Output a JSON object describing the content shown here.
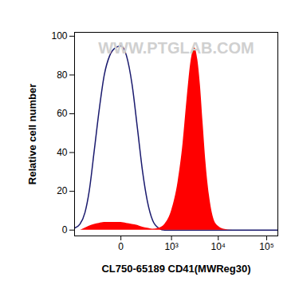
{
  "chart_data": {
    "type": "histogram",
    "x_label": "CL750-65189 CD41(MWReg30)",
    "y_label": "Relative cell number",
    "annotations": [
      "WWW.PTGLAB.COM"
    ],
    "log": "x",
    "x": [
      -800,
      -600,
      -450,
      -350,
      -250,
      -180,
      -120,
      -70,
      -30,
      0,
      30,
      70,
      120,
      180,
      250,
      350,
      500,
      700,
      1000,
      1400,
      1800,
      2200,
      2700,
      3200,
      3700,
      4200,
      4800,
      5500,
      6500,
      8000,
      10000,
      13000,
      20000,
      50000,
      170000
    ],
    "series": [
      {
        "type": "line",
        "color": "#1a1a6e",
        "values": [
          1,
          3,
          9,
          20,
          42,
          62,
          80,
          90,
          94,
          95,
          90,
          75,
          52,
          30,
          15,
          5,
          1,
          0,
          0,
          0,
          0,
          0,
          0,
          0,
          0,
          0,
          0,
          0,
          0,
          0,
          0,
          0,
          0,
          0,
          0
        ]
      },
      {
        "type": "area",
        "color": "#ff0000",
        "values": [
          0,
          0,
          1,
          2,
          3,
          3.5,
          4,
          4,
          4,
          4,
          3.5,
          3,
          2.5,
          1.5,
          1,
          0.5,
          1,
          3,
          10,
          25,
          45,
          68,
          88,
          94,
          88,
          75,
          55,
          35,
          18,
          6,
          2,
          0.5,
          0,
          0,
          0
        ]
      }
    ],
    "xlim": [
      -800,
      170000
    ],
    "xticks": [
      0,
      {
        "value": 1000,
        "label": "10³"
      },
      {
        "value": 10000,
        "label": "10⁴"
      },
      {
        "value": 100000,
        "label": "10⁵"
      }
    ],
    "ylim": [
      -3,
      102
    ],
    "yticks": [
      0,
      20,
      40,
      60,
      80,
      100
    ]
  }
}
